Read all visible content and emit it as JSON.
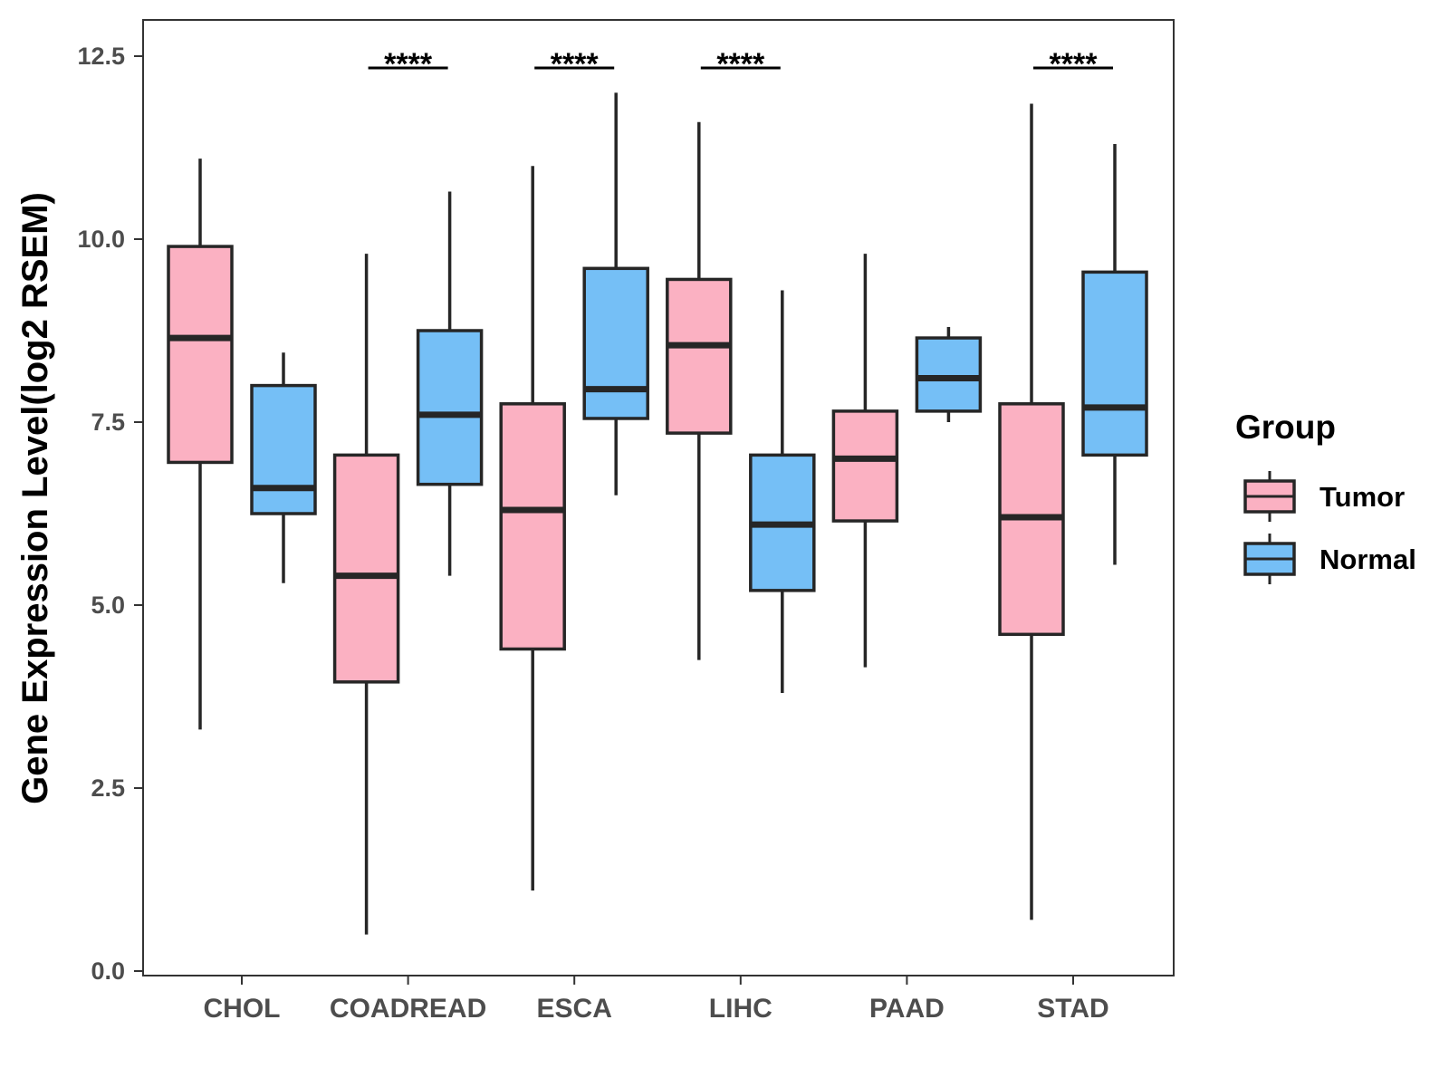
{
  "chart_data": {
    "type": "boxplot",
    "title": "",
    "xlabel": "",
    "ylabel": "Gene Expression Level(log2 RSEM)",
    "ylim": [
      0,
      12.5
    ],
    "yticks": [
      0.0,
      2.5,
      5.0,
      7.5,
      10.0,
      12.5
    ],
    "ytick_labels": [
      "0.0",
      "2.5",
      "5.0",
      "7.5",
      "10.0",
      "12.5"
    ],
    "grid": false,
    "categories": [
      "CHOL",
      "COADREAD",
      "ESCA",
      "LIHC",
      "PAAD",
      "STAD"
    ],
    "series": [
      {
        "name": "Tumor",
        "color": "#fbb1c2",
        "boxes": [
          {
            "min": 3.3,
            "q1": 6.95,
            "median": 8.65,
            "q3": 9.9,
            "max": 11.1
          },
          {
            "min": 0.5,
            "q1": 3.95,
            "median": 5.4,
            "q3": 7.05,
            "max": 9.8
          },
          {
            "min": 1.1,
            "q1": 4.4,
            "median": 6.3,
            "q3": 7.75,
            "max": 11.0
          },
          {
            "min": 4.25,
            "q1": 7.35,
            "median": 8.55,
            "q3": 9.45,
            "max": 11.6
          },
          {
            "min": 4.15,
            "q1": 6.15,
            "median": 7.0,
            "q3": 7.65,
            "max": 9.8
          },
          {
            "min": 0.7,
            "q1": 4.6,
            "median": 6.2,
            "q3": 7.75,
            "max": 11.85
          }
        ]
      },
      {
        "name": "Normal",
        "color": "#75bff6",
        "boxes": [
          {
            "min": 5.3,
            "q1": 6.25,
            "median": 6.6,
            "q3": 8.0,
            "max": 8.45
          },
          {
            "min": 5.4,
            "q1": 6.65,
            "median": 7.6,
            "q3": 8.75,
            "max": 10.65
          },
          {
            "min": 6.5,
            "q1": 7.55,
            "median": 7.95,
            "q3": 9.6,
            "max": 12.0
          },
          {
            "min": 3.8,
            "q1": 5.2,
            "median": 6.1,
            "q3": 7.05,
            "max": 9.3
          },
          {
            "min": 7.5,
            "q1": 7.65,
            "median": 8.1,
            "q3": 8.65,
            "max": 8.8
          },
          {
            "min": 5.55,
            "q1": 7.05,
            "median": 7.7,
            "q3": 9.55,
            "max": 11.3
          }
        ]
      }
    ],
    "significance": [
      {
        "category": "COADREAD",
        "label": "****"
      },
      {
        "category": "ESCA",
        "label": "****"
      },
      {
        "category": "LIHC",
        "label": "****"
      },
      {
        "category": "STAD",
        "label": "****"
      }
    ],
    "legend": {
      "title": "Group",
      "position": "right",
      "entries": [
        "Tumor",
        "Normal"
      ]
    },
    "box_outline_color": "#262626"
  }
}
